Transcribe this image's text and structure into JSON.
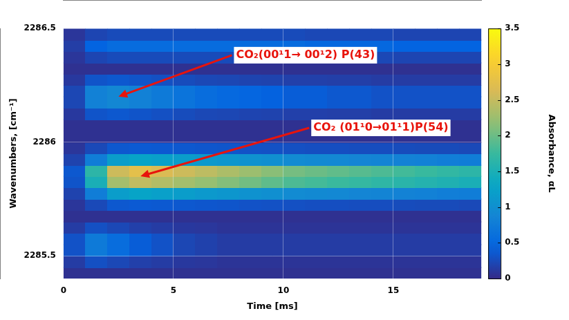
{
  "chart_data": {
    "type": "heatmap",
    "x_label": "Time [ms]",
    "y_label": "Wavenumbers, [cm⁻¹]",
    "x": [
      0.5,
      1.5,
      2.5,
      3.5,
      4.5,
      5.5,
      6.5,
      7.5,
      8.5,
      9.5,
      10.5,
      11.5,
      12.5,
      13.5,
      14.5,
      15.5,
      16.5,
      17.5,
      18.5
    ],
    "y": [
      2285.425,
      2285.475,
      2285.525,
      2285.575,
      2285.625,
      2285.675,
      2285.725,
      2285.775,
      2285.825,
      2285.875,
      2285.925,
      2285.975,
      2286.025,
      2286.075,
      2286.125,
      2286.175,
      2286.225,
      2286.275,
      2286.325,
      2286.375,
      2286.425,
      2286.475
    ],
    "cells": [
      [
        0.05,
        0.05,
        0.05,
        0.05,
        0.05,
        0.05,
        0.05,
        0.05,
        0.05,
        0.05,
        0.05,
        0.05,
        0.05,
        0.05,
        0.05,
        0.05,
        0.05,
        0.05,
        0.05
      ],
      [
        0.14,
        0.29,
        0.23,
        0.17,
        0.14,
        0.11,
        0.1,
        0.08,
        0.08,
        0.08,
        0.08,
        0.08,
        0.08,
        0.08,
        0.08,
        0.08,
        0.08,
        0.08,
        0.08
      ],
      [
        0.31,
        0.73,
        0.56,
        0.39,
        0.31,
        0.22,
        0.18,
        0.14,
        0.14,
        0.14,
        0.14,
        0.14,
        0.14,
        0.14,
        0.14,
        0.14,
        0.14,
        0.14,
        0.14
      ],
      [
        0.31,
        0.73,
        0.56,
        0.39,
        0.31,
        0.22,
        0.18,
        0.14,
        0.14,
        0.14,
        0.14,
        0.14,
        0.14,
        0.14,
        0.14,
        0.14,
        0.14,
        0.14,
        0.14
      ],
      [
        0.14,
        0.29,
        0.23,
        0.17,
        0.14,
        0.11,
        0.1,
        0.08,
        0.08,
        0.08,
        0.08,
        0.08,
        0.08,
        0.08,
        0.08,
        0.08,
        0.08,
        0.08,
        0.08
      ],
      [
        0.05,
        0.05,
        0.05,
        0.05,
        0.05,
        0.05,
        0.05,
        0.05,
        0.05,
        0.05,
        0.05,
        0.05,
        0.05,
        0.05,
        0.05,
        0.05,
        0.05,
        0.05,
        0.05
      ],
      [
        0.09,
        0.24,
        0.35,
        0.37,
        0.36,
        0.35,
        0.34,
        0.33,
        0.31,
        0.3,
        0.29,
        0.28,
        0.28,
        0.27,
        0.27,
        0.26,
        0.25,
        0.25,
        0.24
      ],
      [
        0.19,
        0.77,
        1.18,
        1.27,
        1.22,
        1.18,
        1.13,
        1.09,
        1.04,
        1.0,
        0.95,
        0.93,
        0.91,
        0.88,
        0.86,
        0.84,
        0.82,
        0.79,
        0.77
      ],
      [
        0.32,
        1.49,
        2.3,
        2.48,
        2.39,
        2.3,
        2.21,
        2.12,
        2.03,
        1.94,
        1.85,
        1.81,
        1.76,
        1.72,
        1.67,
        1.63,
        1.58,
        1.54,
        1.49
      ],
      [
        0.35,
        1.65,
        2.55,
        2.75,
        2.65,
        2.55,
        2.45,
        2.35,
        2.25,
        2.15,
        2.05,
        2.0,
        1.95,
        1.9,
        1.85,
        1.8,
        1.75,
        1.7,
        1.65
      ],
      [
        0.19,
        0.77,
        1.18,
        1.27,
        1.22,
        1.18,
        1.13,
        1.09,
        1.04,
        1.0,
        0.95,
        0.93,
        0.91,
        0.88,
        0.86,
        0.84,
        0.82,
        0.79,
        0.77
      ],
      [
        0.09,
        0.24,
        0.35,
        0.37,
        0.36,
        0.35,
        0.34,
        0.33,
        0.31,
        0.3,
        0.29,
        0.28,
        0.28,
        0.27,
        0.27,
        0.26,
        0.25,
        0.25,
        0.24
      ],
      [
        0.05,
        0.05,
        0.05,
        0.05,
        0.05,
        0.05,
        0.05,
        0.05,
        0.05,
        0.05,
        0.05,
        0.05,
        0.05,
        0.05,
        0.05,
        0.05,
        0.05,
        0.05,
        0.05
      ],
      [
        0.05,
        0.05,
        0.05,
        0.05,
        0.05,
        0.05,
        0.05,
        0.05,
        0.05,
        0.05,
        0.05,
        0.05,
        0.05,
        0.05,
        0.05,
        0.05,
        0.05,
        0.05,
        0.05
      ],
      [
        0.11,
        0.32,
        0.35,
        0.32,
        0.29,
        0.26,
        0.23,
        0.22,
        0.2,
        0.19,
        0.17,
        0.17,
        0.16,
        0.16,
        0.14,
        0.14,
        0.14,
        0.14,
        0.14
      ],
      [
        0.22,
        0.82,
        0.9,
        0.82,
        0.73,
        0.65,
        0.56,
        0.52,
        0.48,
        0.43,
        0.39,
        0.39,
        0.35,
        0.35,
        0.31,
        0.31,
        0.31,
        0.31,
        0.31
      ],
      [
        0.22,
        0.82,
        0.9,
        0.82,
        0.73,
        0.65,
        0.56,
        0.52,
        0.48,
        0.43,
        0.39,
        0.39,
        0.35,
        0.35,
        0.31,
        0.31,
        0.31,
        0.31,
        0.31
      ],
      [
        0.11,
        0.32,
        0.35,
        0.32,
        0.29,
        0.26,
        0.23,
        0.22,
        0.2,
        0.19,
        0.17,
        0.17,
        0.16,
        0.16,
        0.14,
        0.14,
        0.14,
        0.14,
        0.14
      ],
      [
        0.05,
        0.05,
        0.05,
        0.05,
        0.05,
        0.05,
        0.05,
        0.05,
        0.05,
        0.05,
        0.05,
        0.05,
        0.05,
        0.05,
        0.05,
        0.05,
        0.05,
        0.05,
        0.05
      ],
      [
        0.09,
        0.21,
        0.25,
        0.25,
        0.25,
        0.25,
        0.25,
        0.25,
        0.25,
        0.25,
        0.25,
        0.23,
        0.23,
        0.23,
        0.23,
        0.21,
        0.21,
        0.21,
        0.21
      ],
      [
        0.15,
        0.45,
        0.55,
        0.55,
        0.55,
        0.55,
        0.55,
        0.55,
        0.55,
        0.55,
        0.55,
        0.5,
        0.5,
        0.5,
        0.5,
        0.45,
        0.45,
        0.45,
        0.45
      ],
      [
        0.09,
        0.21,
        0.25,
        0.25,
        0.25,
        0.25,
        0.25,
        0.25,
        0.25,
        0.25,
        0.25,
        0.23,
        0.23,
        0.23,
        0.23,
        0.21,
        0.21,
        0.21,
        0.21
      ]
    ],
    "xlim": [
      0,
      19
    ],
    "xticks": [
      0,
      5,
      10,
      15
    ],
    "ylim": [
      2285.4,
      2286.5
    ],
    "yticks": [
      2285.5,
      2286,
      2286.5
    ],
    "grid": true,
    "colorbar": {
      "label": "Absorbance, αL",
      "range": [
        0,
        3.5
      ],
      "ticks": [
        0,
        0.5,
        1,
        1.5,
        2,
        2.5,
        3,
        3.5
      ]
    },
    "annotations": [
      {
        "text": "CO₂ (01¹0→01¹1)P(54)",
        "x": 3.5,
        "y": 2285.85,
        "color": "#e8140c"
      },
      {
        "text": "CO₂(00¹1→ 00¹2) P(43)",
        "x": 2.5,
        "y": 2286.2,
        "color": "#e8140c"
      }
    ]
  }
}
